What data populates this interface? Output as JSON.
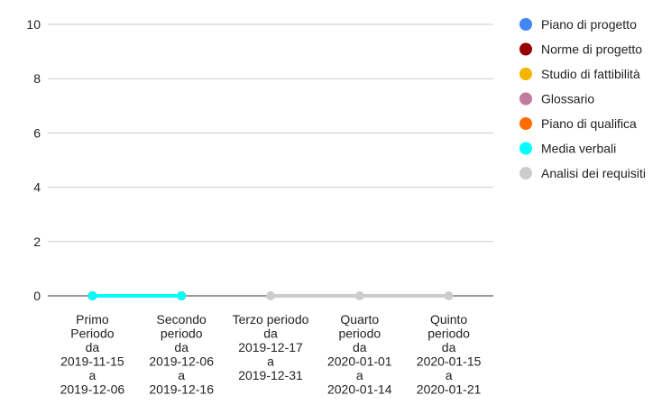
{
  "chart_data": {
    "type": "line",
    "title": "",
    "xlabel": "",
    "ylabel": "",
    "ylim": [
      0,
      10
    ],
    "y_ticks": [
      0,
      2,
      4,
      6,
      8,
      10
    ],
    "grid": true,
    "legend_position": "right",
    "categories": [
      [
        "Primo",
        "Periodo",
        "da",
        "2019-11-15",
        "a",
        "2019-12-06"
      ],
      [
        "Secondo",
        "periodo",
        "da",
        "2019-12-06",
        "a",
        "2019-12-16"
      ],
      [
        "Terzo periodo",
        "da",
        "2019-12-17",
        "a",
        "2019-12-31"
      ],
      [
        "Quarto",
        "periodo",
        "da",
        "2020-01-01",
        "a",
        "2020-01-14"
      ],
      [
        "Quinto",
        "periodo",
        "da",
        "2020-01-15",
        "a",
        "2020-01-21"
      ]
    ],
    "series": [
      {
        "name": "Piano di progetto",
        "color": "#4285f4",
        "values": [
          0,
          0,
          null,
          null,
          null
        ]
      },
      {
        "name": "Norme di progetto",
        "color": "#990000",
        "values": [
          0,
          0,
          null,
          null,
          null
        ]
      },
      {
        "name": "Studio di fattibilità",
        "color": "#f4b400",
        "values": [
          0,
          0,
          null,
          null,
          null
        ]
      },
      {
        "name": "Glossario",
        "color": "#c27ba0",
        "values": [
          0,
          0,
          null,
          null,
          null
        ]
      },
      {
        "name": "Piano di qualifica",
        "color": "#ff6d01",
        "values": [
          0,
          0,
          null,
          null,
          null
        ]
      },
      {
        "name": "Media verbali",
        "color": "#00ffff",
        "values": [
          0,
          0,
          null,
          null,
          null
        ]
      },
      {
        "name": "Analisi dei requisiti",
        "color": "#cccccc",
        "values": [
          null,
          null,
          0,
          0,
          0
        ]
      }
    ]
  }
}
